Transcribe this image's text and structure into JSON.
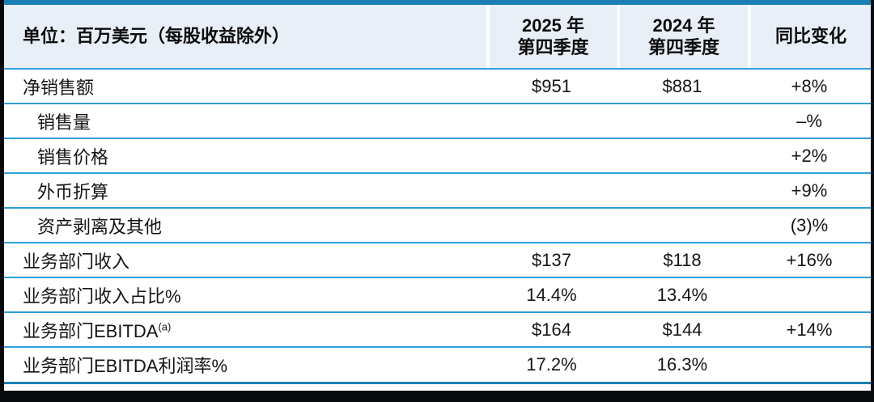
{
  "table": {
    "header": {
      "unit_label": "单位：百万美元（每股收益除外）",
      "col_2025": {
        "line1": "2025 年",
        "line2": "第四季度"
      },
      "col_2024": {
        "line1": "2024 年",
        "line2": "第四季度"
      },
      "col_yoy": "同比变化"
    },
    "rows": [
      {
        "label": "净销售额",
        "indent": false,
        "q4_2025": "$951",
        "q4_2024": "$881",
        "yoy": "+8%"
      },
      {
        "label": "销售量",
        "indent": true,
        "q4_2025": "",
        "q4_2024": "",
        "yoy": "–%"
      },
      {
        "label": "销售价格",
        "indent": true,
        "q4_2025": "",
        "q4_2024": "",
        "yoy": "+2%"
      },
      {
        "label": "外币折算",
        "indent": true,
        "q4_2025": "",
        "q4_2024": "",
        "yoy": "+9%"
      },
      {
        "label": "资产剥离及其他",
        "indent": true,
        "q4_2025": "",
        "q4_2024": "",
        "yoy": "(3)%"
      },
      {
        "label": "业务部门收入",
        "indent": false,
        "q4_2025": "$137",
        "q4_2024": "$118",
        "yoy": "+16%"
      },
      {
        "label": "业务部门收入占比%",
        "indent": false,
        "q4_2025": "14.4%",
        "q4_2024": "13.4%",
        "yoy": ""
      },
      {
        "label": "业务部门EBITDA",
        "label_sup": "(a)",
        "indent": false,
        "q4_2025": "$164",
        "q4_2024": "$144",
        "yoy": "+14%"
      },
      {
        "label": "业务部门EBITDA利润率%",
        "indent": false,
        "q4_2025": "17.2%",
        "q4_2024": "16.3%",
        "yoy": ""
      }
    ],
    "colors": {
      "accent_top": "#1a80b3",
      "row_divider": "#2e9fd8",
      "header_bg": "#e9eff7",
      "frame_bg": "#07090d"
    }
  }
}
